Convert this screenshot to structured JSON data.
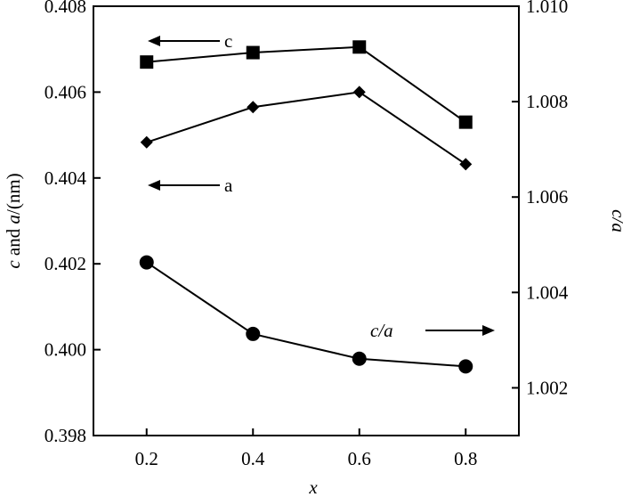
{
  "chart_data": {
    "type": "line",
    "x": [
      0.2,
      0.4,
      0.6,
      0.8
    ],
    "xlabel": "x",
    "xlim": [
      0.1,
      0.9
    ],
    "xticks": [
      "0.2",
      "0.4",
      "0.6",
      "0.8"
    ],
    "left_axis": {
      "label_italic_c": "c",
      "label_mid": " and ",
      "label_italic_a": "a",
      "label_unit": "/(nm)",
      "ylim": [
        0.398,
        0.408
      ],
      "ticks": [
        "0.398",
        "0.400",
        "0.402",
        "0.404",
        "0.406",
        "0.408"
      ]
    },
    "right_axis": {
      "label": "c/a",
      "ylim": [
        1.001,
        1.01
      ],
      "ticks": [
        "1.002",
        "1.004",
        "1.006",
        "1.008",
        "1.010"
      ]
    },
    "series": [
      {
        "name": "c",
        "axis": "left",
        "marker": "square",
        "values": [
          0.4067,
          0.40692,
          0.40705,
          0.4053
        ]
      },
      {
        "name": "a",
        "axis": "left",
        "marker": "diamond",
        "values": [
          0.40483,
          0.40565,
          0.406,
          0.40432
        ]
      },
      {
        "name": "c/a",
        "axis": "right",
        "marker": "circle",
        "values": [
          1.00463,
          1.00313,
          1.00261,
          1.00245
        ]
      }
    ],
    "annotations": [
      {
        "label": "c",
        "arrow": "left"
      },
      {
        "label": "a",
        "arrow": "left"
      },
      {
        "label": "c/a",
        "arrow": "right"
      }
    ]
  }
}
